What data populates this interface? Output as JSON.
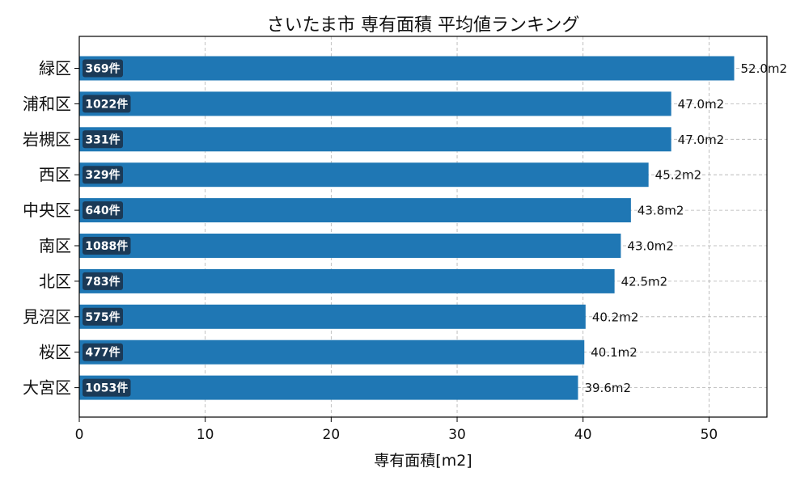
{
  "chart_data": {
    "type": "bar",
    "orientation": "horizontal",
    "title": "さいたま市 専有面積 平均値ランキング",
    "xlabel": "専有面積[m2]",
    "ylabel": "",
    "xlim": [
      0,
      54.6
    ],
    "xticks": [
      0,
      10,
      20,
      30,
      40,
      50
    ],
    "grid": true,
    "categories": [
      "緑区",
      "浦和区",
      "岩槻区",
      "西区",
      "中央区",
      "南区",
      "北区",
      "見沼区",
      "桜区",
      "大宮区"
    ],
    "values": [
      52.0,
      47.0,
      47.0,
      45.2,
      43.8,
      43.0,
      42.5,
      40.2,
      40.1,
      39.6
    ],
    "value_labels": [
      "52.0m2",
      "47.0m2",
      "47.0m2",
      "45.2m2",
      "43.8m2",
      "43.0m2",
      "42.5m2",
      "40.2m2",
      "40.1m2",
      "39.6m2"
    ],
    "count_labels": [
      "369件",
      "1022件",
      "331件",
      "329件",
      "640件",
      "1088件",
      "783件",
      "575件",
      "477件",
      "1053件"
    ],
    "colors": {
      "bar": "#1f77b4",
      "badge": "#1b3a57",
      "grid": "#b0b0b0",
      "axis": "#000000"
    }
  }
}
